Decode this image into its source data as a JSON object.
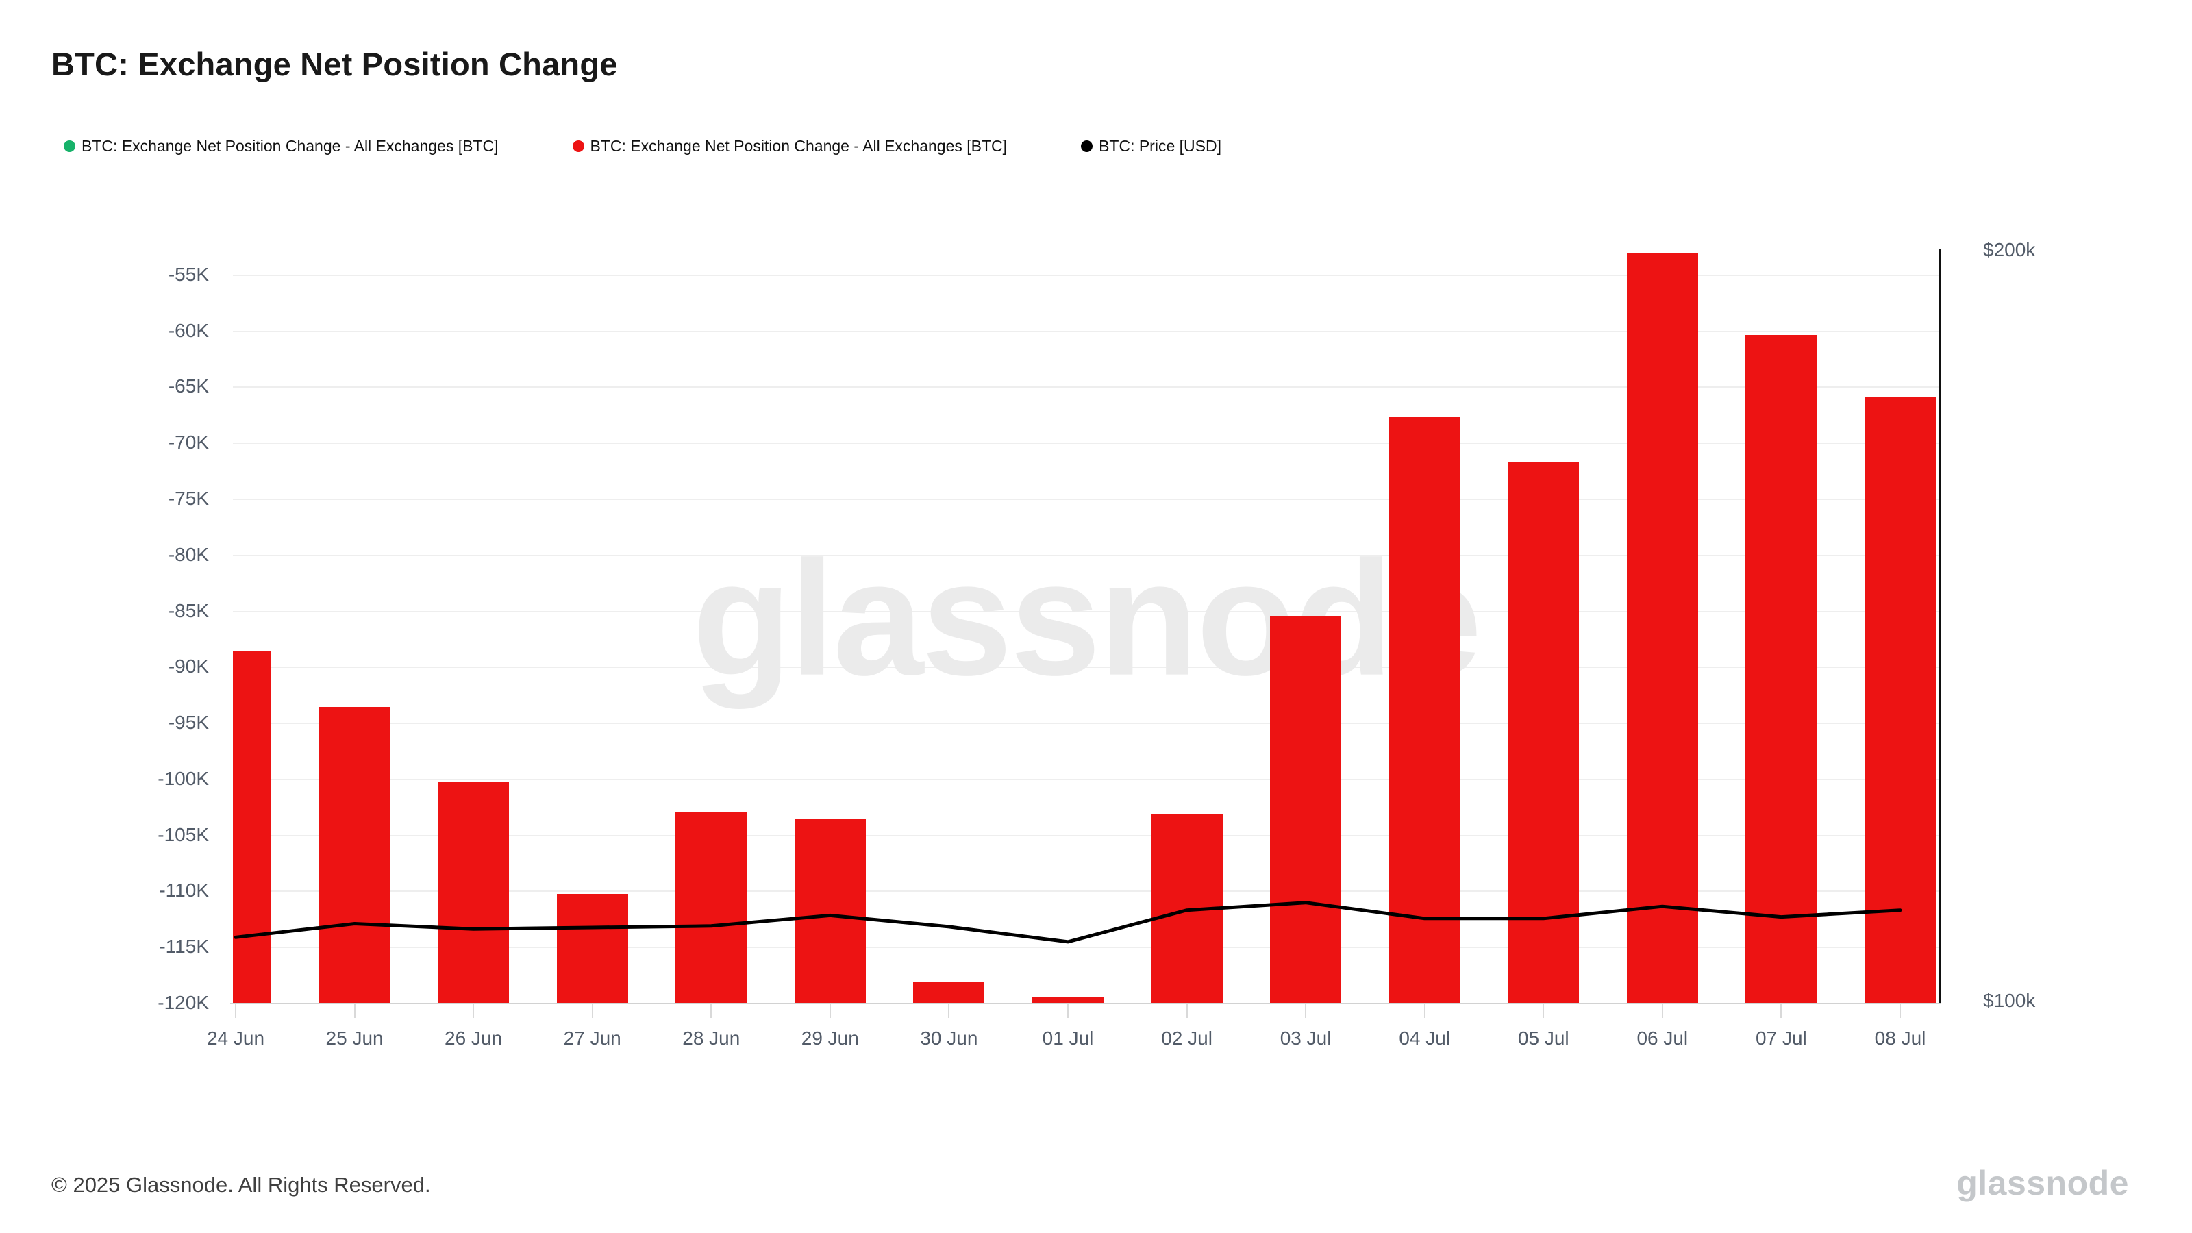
{
  "header": {
    "title": "BTC: Exchange Net Position Change"
  },
  "legend": {
    "items": [
      {
        "label": "BTC: Exchange Net Position Change - All Exchanges [BTC]",
        "color": "#17b26a"
      },
      {
        "label": "BTC: Exchange Net Position Change - All Exchanges [BTC]",
        "color": "#ed1313"
      },
      {
        "label": "BTC: Price [USD]",
        "color": "#000000"
      }
    ]
  },
  "chart_data": {
    "type": "bar",
    "title": "BTC: Exchange Net Position Change",
    "categories": [
      "24 Jun",
      "25 Jun",
      "26 Jun",
      "27 Jun",
      "28 Jun",
      "29 Jun",
      "30 Jun",
      "01 Jul",
      "02 Jul",
      "03 Jul",
      "04 Jul",
      "05 Jul",
      "06 Jul",
      "07 Jul",
      "08 Jul"
    ],
    "series": [
      {
        "name": "BTC: Exchange Net Position Change - All Exchanges [BTC]",
        "type": "bar",
        "axis": "left",
        "color": "#ed1313",
        "values": [
          -88600,
          -93600,
          -100300,
          -110300,
          -103000,
          -103600,
          -118100,
          -119500,
          -103200,
          -85500,
          -67700,
          -71700,
          -53100,
          -60400,
          -65900
        ]
      },
      {
        "name": "BTC: Price [USD]",
        "type": "line",
        "axis": "right",
        "color": "#000000",
        "values": [
          108700,
          110500,
          109800,
          110000,
          110200,
          111600,
          110100,
          108100,
          112300,
          113300,
          111200,
          111200,
          112800,
          111400,
          112300
        ]
      }
    ],
    "left_axis": {
      "min": -120000,
      "max": -52750,
      "tick_values": [
        -55000,
        -60000,
        -65000,
        -70000,
        -75000,
        -80000,
        -85000,
        -90000,
        -95000,
        -100000,
        -105000,
        -110000,
        -115000,
        -120000
      ],
      "tick_labels": [
        "-55K",
        "-60K",
        "-65K",
        "-70K",
        "-75K",
        "-80K",
        "-85K",
        "-90K",
        "-95K",
        "-100K",
        "-105K",
        "-110K",
        "-115K",
        "-120K"
      ]
    },
    "right_axis": {
      "min": 100000,
      "max": 200000,
      "labels": [
        "$200k",
        "$100k"
      ]
    },
    "grid": "horizontal",
    "legend_position": "top"
  },
  "watermark": {
    "text": "glassnode"
  },
  "footer": {
    "copyright": "© 2025 Glassnode. All Rights Reserved.",
    "logo_text": "glassnode"
  }
}
